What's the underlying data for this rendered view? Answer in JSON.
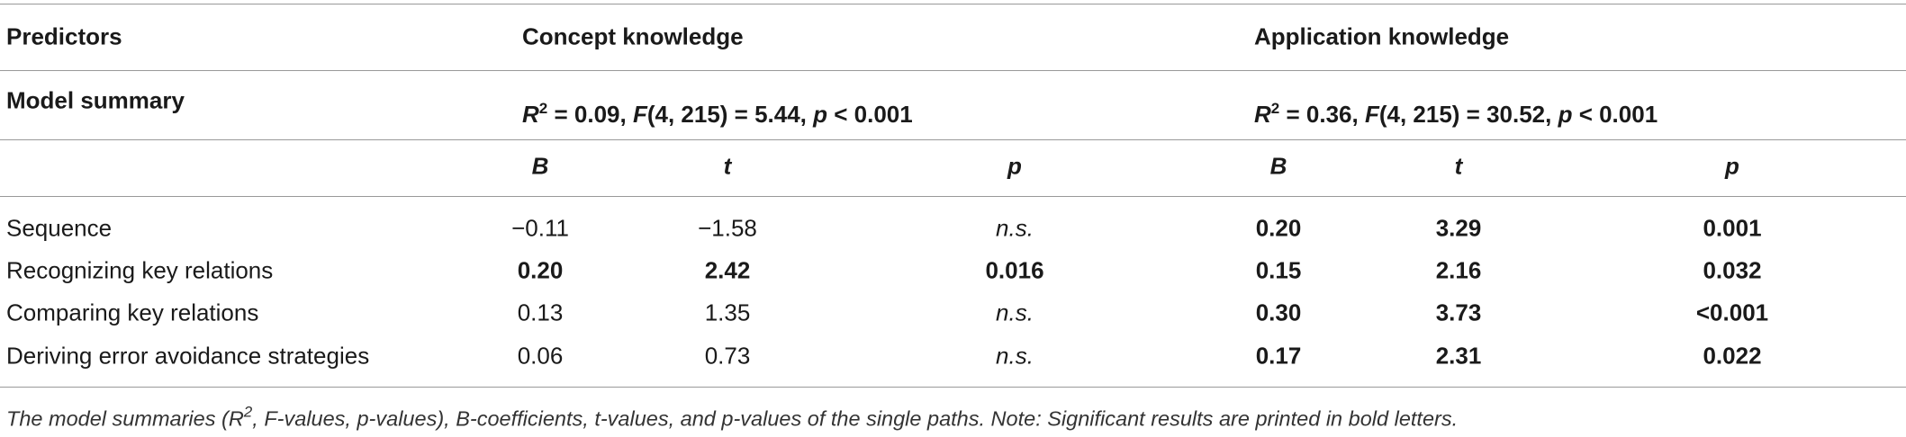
{
  "header": {
    "predictors": "Predictors",
    "concept": "Concept knowledge",
    "application": "Application knowledge"
  },
  "model_summary": {
    "label": "Model summary",
    "concept": [
      "R",
      "2",
      " = 0.09, ",
      "F",
      "(4, 215) = 5.44, ",
      "p",
      " < 0.001"
    ],
    "application": [
      "R",
      "2",
      " = 0.36, ",
      "F",
      "(4, 215) = 30.52, ",
      "p",
      " < 0.001"
    ]
  },
  "columns": [
    "B",
    "t",
    "p",
    "B",
    "t",
    "p"
  ],
  "rows": [
    [
      "Sequence",
      "−0.11",
      "−1.58",
      "n.s.",
      "0.20",
      "3.29",
      "0.001"
    ],
    [
      "Recognizing key relations",
      "0.20",
      "2.42",
      "0.016",
      "0.15",
      "2.16",
      "0.032"
    ],
    [
      "Comparing key relations",
      "0.13",
      "1.35",
      "n.s.",
      "0.30",
      "3.73",
      "<0.001"
    ],
    [
      "Deriving error avoidance strategies",
      "0.06",
      "0.73",
      "n.s.",
      "0.17",
      "2.31",
      "0.022"
    ]
  ],
  "caption": [
    "The model summaries (R",
    "2",
    ", F-values, p-values), B-coefficients, t-values, and p-values of the single paths. Note: Significant results are printed in bold letters."
  ]
}
